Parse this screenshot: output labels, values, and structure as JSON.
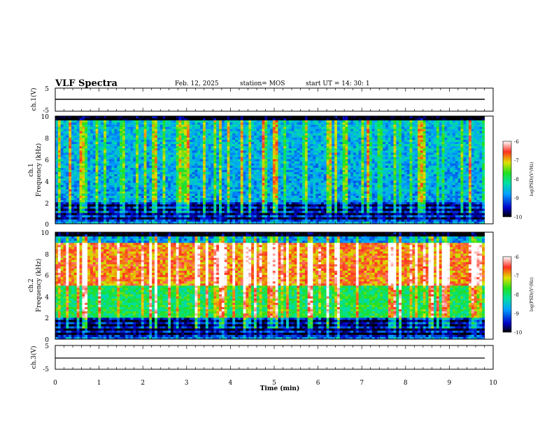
{
  "header": {
    "title": "VLF Spectra",
    "date": "Feb. 12, 2025",
    "station": "station= MOS",
    "start_ut": "start  UT =   14: 30: 1"
  },
  "panels": {
    "ch1_v": {
      "ylabel": "ch.1(V)",
      "ticks": [
        "5",
        "-5"
      ]
    },
    "ch1_spec": {
      "ylabel_line1": "ch.1",
      "ylabel_line2": "Frequency (kHz)",
      "ticks": [
        "10",
        "8",
        "6",
        "4",
        "2",
        "0"
      ]
    },
    "ch2_spec": {
      "ylabel_line1": "ch.2",
      "ylabel_line2": "Frequency (kHz)",
      "ticks": [
        "10",
        "8",
        "6",
        "4",
        "2",
        "0"
      ]
    },
    "ch3_v": {
      "ylabel": "ch.3(V)",
      "ticks": [
        "5",
        "-5"
      ]
    }
  },
  "xaxis": {
    "label": "Time  (min)",
    "ticks": [
      "0",
      "1",
      "2",
      "3",
      "4",
      "5",
      "6",
      "7",
      "8",
      "9",
      "10"
    ]
  },
  "colorbars": [
    {
      "label": "log(PSD)(V²/Hz)",
      "ticks": [
        "-6",
        "-7",
        "-8",
        "-9",
        "-10"
      ]
    },
    {
      "label": "log(PSD)(V²/Hz)",
      "ticks": [
        "-6",
        "-7",
        "-8",
        "-9",
        "-10"
      ]
    }
  ],
  "chart_data": [
    {
      "type": "line",
      "name": "ch.1(V)",
      "xlim": [
        0,
        10
      ],
      "ylim": [
        -5,
        5
      ],
      "x": [
        0,
        9.8
      ],
      "y": [
        0,
        0
      ]
    },
    {
      "type": "heatmap",
      "name": "ch.1",
      "xlim": [
        0,
        10
      ],
      "ylim": [
        0,
        10
      ],
      "zlim": [
        -10,
        -6
      ],
      "description_levels": {
        "above_9_5_kHz": -10,
        "bands_0_to_2_kHz": -10,
        "0_to_9_kHz": -8.5
      }
    },
    {
      "type": "heatmap",
      "name": "ch.2",
      "xlim": [
        0,
        10
      ],
      "ylim": [
        0,
        10
      ],
      "zlim": [
        -10,
        -6
      ],
      "description_levels": {
        "5_to_9_kHz": -6.8,
        "2_to_5_kHz": -8,
        "below_2_kHz": -9.6
      }
    },
    {
      "type": "line",
      "name": "ch.3(V)",
      "xlim": [
        0,
        10
      ],
      "ylim": [
        -5,
        5
      ],
      "x": [
        0,
        9.8
      ],
      "y": [
        0,
        0
      ]
    }
  ]
}
